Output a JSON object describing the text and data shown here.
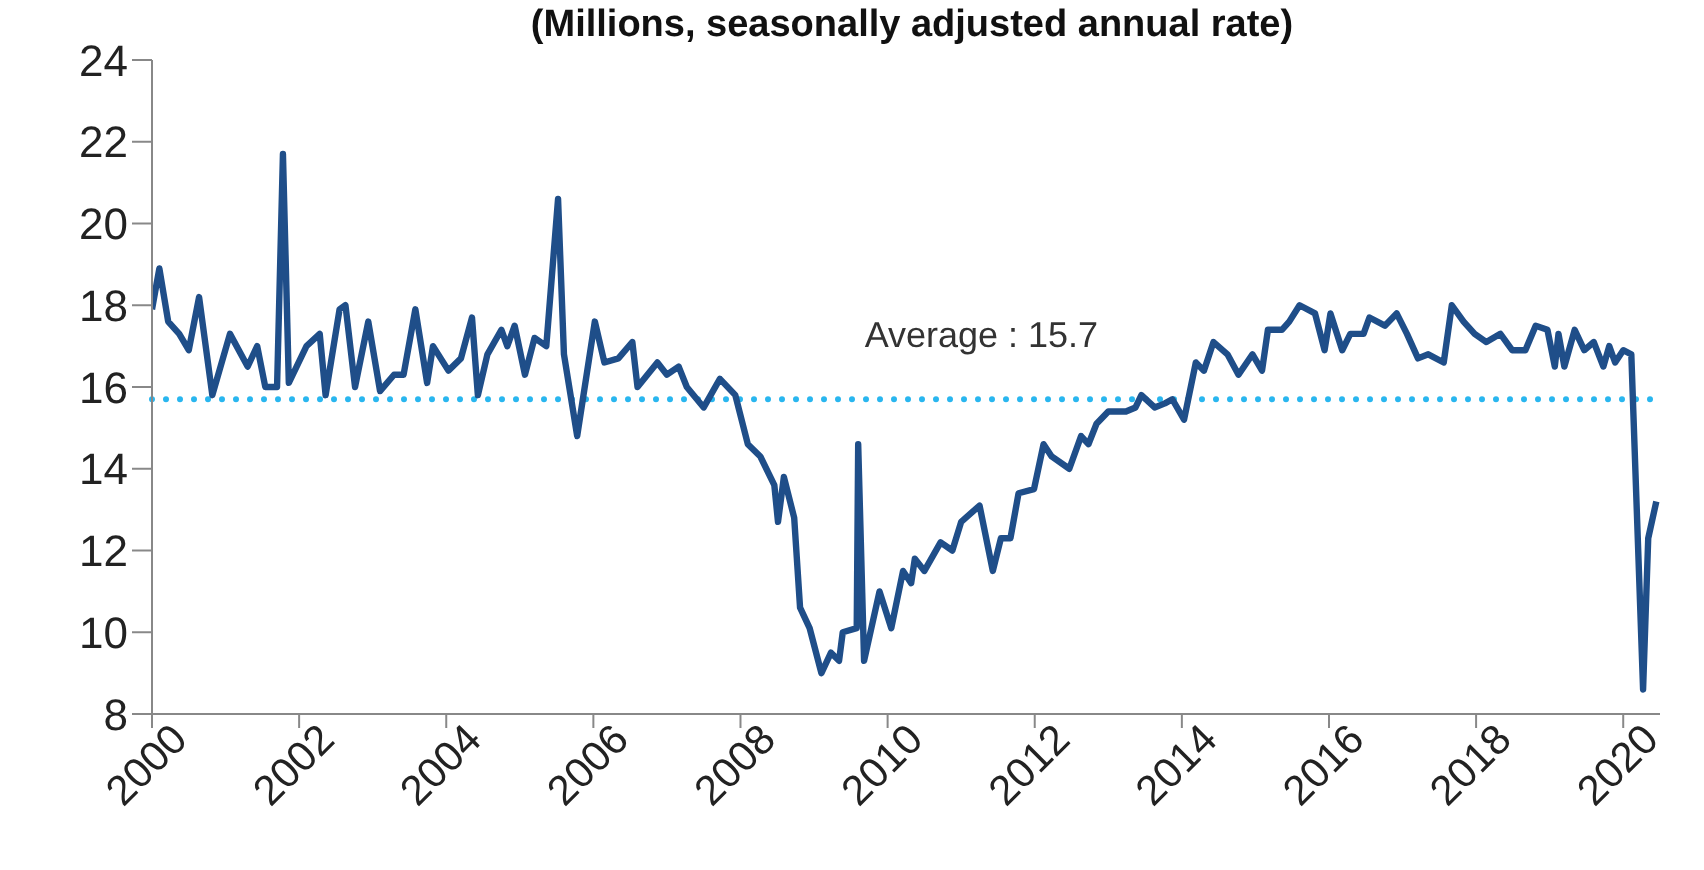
{
  "chart_data": {
    "type": "line",
    "subtitle": "(Millions, seasonally adjusted annual rate)",
    "xlim": [
      2000,
      2020.5
    ],
    "xticks": [
      2000,
      2002,
      2004,
      2006,
      2008,
      2010,
      2012,
      2014,
      2016,
      2018,
      2020
    ],
    "ylim": [
      8,
      24
    ],
    "yticks": [
      8,
      10,
      12,
      14,
      16,
      18,
      20,
      22,
      24
    ],
    "grid": false,
    "legend": false,
    "marker": "none",
    "line_style": "solid",
    "ref_lines": [
      {
        "axis": "y",
        "value": 15.7,
        "label": "Average : 15.7",
        "color": "#29b6ef",
        "line_style": "dotted"
      }
    ],
    "series": [
      {
        "color": "#1f4e89",
        "x": [
          2000,
          2000.1,
          2000.22,
          2000.37,
          2000.5,
          2000.64,
          2000.82,
          2001.06,
          2001.3,
          2001.43,
          2001.54,
          2001.7,
          2001.78,
          2001.86,
          2002.1,
          2002.28,
          2002.36,
          2002.55,
          2002.63,
          2002.76,
          2002.94,
          2003.1,
          2003.29,
          2003.42,
          2003.58,
          2003.74,
          2003.82,
          2004.03,
          2004.2,
          2004.35,
          2004.43,
          2004.56,
          2004.75,
          2004.83,
          2004.93,
          2005.07,
          2005.2,
          2005.36,
          2005.52,
          2005.6,
          2005.78,
          2006.02,
          2006.15,
          2006.34,
          2006.53,
          2006.6,
          2006.87,
          2007,
          2007.16,
          2007.27,
          2007.5,
          2007.72,
          2007.93,
          2008.1,
          2008.27,
          2008.46,
          2008.51,
          2008.59,
          2008.73,
          2008.81,
          2008.94,
          2009.1,
          2009.23,
          2009.34,
          2009.39,
          2009.58,
          2009.6,
          2009.68,
          2009.89,
          2010.05,
          2010.21,
          2010.32,
          2010.37,
          2010.5,
          2010.72,
          2010.88,
          2011,
          2011.25,
          2011.43,
          2011.54,
          2011.67,
          2011.78,
          2011.99,
          2012.12,
          2012.23,
          2012.47,
          2012.63,
          2012.73,
          2012.84,
          2013,
          2013.24,
          2013.37,
          2013.45,
          2013.63,
          2013.77,
          2013.87,
          2014.03,
          2014.19,
          2014.3,
          2014.43,
          2014.62,
          2014.77,
          2014.96,
          2015.09,
          2015.17,
          2015.36,
          2015.46,
          2015.6,
          2015.81,
          2015.94,
          2016.02,
          2016.18,
          2016.29,
          2016.47,
          2016.55,
          2016.76,
          2016.92,
          2017.06,
          2017.21,
          2017.35,
          2017.56,
          2017.67,
          2017.83,
          2017.98,
          2018.14,
          2018.33,
          2018.49,
          2018.67,
          2018.81,
          2018.97,
          2019.07,
          2019.12,
          2019.2,
          2019.34,
          2019.47,
          2019.6,
          2019.73,
          2019.81,
          2019.89,
          2020,
          2020.11,
          2020.27,
          2020.34,
          2020.45
        ],
        "values": [
          17.9,
          18.9,
          17.6,
          17.3,
          16.9,
          18.2,
          15.8,
          17.3,
          16.5,
          17,
          16,
          16,
          21.7,
          16.1,
          17,
          17.3,
          15.8,
          17.9,
          18,
          16,
          17.6,
          15.9,
          16.3,
          16.3,
          17.9,
          16.1,
          17,
          16.4,
          16.7,
          17.7,
          15.8,
          16.8,
          17.4,
          17,
          17.5,
          16.3,
          17.2,
          17,
          20.6,
          16.8,
          14.8,
          17.6,
          16.6,
          16.7,
          17.1,
          16,
          16.6,
          16.3,
          16.5,
          16,
          15.5,
          16.2,
          15.8,
          14.6,
          14.3,
          13.6,
          12.7,
          13.8,
          12.8,
          10.6,
          10.1,
          9,
          9.5,
          9.3,
          10,
          10.1,
          14.6,
          9.3,
          11,
          10.1,
          11.5,
          11.2,
          11.8,
          11.5,
          12.2,
          12,
          12.7,
          13.1,
          11.5,
          12.3,
          12.3,
          13.4,
          13.5,
          14.6,
          14.3,
          14,
          14.8,
          14.6,
          15.1,
          15.4,
          15.4,
          15.5,
          15.8,
          15.5,
          15.6,
          15.7,
          15.2,
          16.6,
          16.4,
          17.1,
          16.8,
          16.3,
          16.8,
          16.4,
          17.4,
          17.4,
          17.6,
          18,
          17.8,
          16.9,
          17.8,
          16.9,
          17.3,
          17.3,
          17.7,
          17.5,
          17.8,
          17.3,
          16.7,
          16.8,
          16.6,
          18,
          17.6,
          17.3,
          17.1,
          17.3,
          16.9,
          16.9,
          17.5,
          17.4,
          16.5,
          17.3,
          16.5,
          17.4,
          16.9,
          17.1,
          16.5,
          17,
          16.6,
          16.9,
          16.8,
          8.6,
          12.3,
          13.2
        ]
      }
    ]
  }
}
